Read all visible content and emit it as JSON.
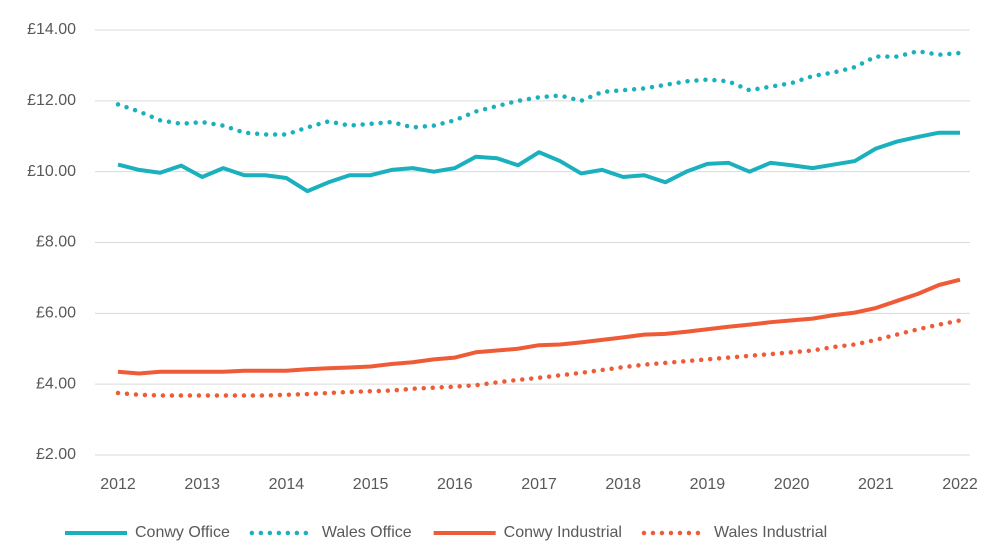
{
  "chart_data": {
    "type": "line",
    "x": [
      2012,
      2012.25,
      2012.5,
      2012.75,
      2013,
      2013.25,
      2013.5,
      2013.75,
      2014,
      2014.25,
      2014.5,
      2014.75,
      2015,
      2015.25,
      2015.5,
      2015.75,
      2016,
      2016.25,
      2016.5,
      2016.75,
      2017,
      2017.25,
      2017.5,
      2017.75,
      2018,
      2018.25,
      2018.5,
      2018.75,
      2019,
      2019.25,
      2019.5,
      2019.75,
      2020,
      2020.25,
      2020.5,
      2020.75,
      2021,
      2021.25,
      2021.5,
      2021.75,
      2022
    ],
    "series": [
      {
        "name": "Conwy Office",
        "color": "#1ab0bd",
        "style": "solid",
        "values": [
          10.2,
          10.05,
          9.97,
          10.17,
          9.85,
          10.1,
          9.9,
          9.9,
          9.82,
          9.45,
          9.7,
          9.9,
          9.9,
          10.05,
          10.1,
          10.0,
          10.1,
          10.42,
          10.38,
          10.18,
          10.55,
          10.3,
          9.95,
          10.05,
          9.85,
          9.9,
          9.7,
          10.0,
          10.22,
          10.25,
          10.0,
          10.25,
          10.18,
          10.1,
          10.2,
          10.3,
          10.65,
          10.85,
          10.98,
          11.1,
          11.1
        ]
      },
      {
        "name": "Wales Office",
        "color": "#1ab0bd",
        "style": "dotted",
        "values": [
          11.9,
          11.7,
          11.45,
          11.35,
          11.4,
          11.3,
          11.1,
          11.05,
          11.05,
          11.25,
          11.42,
          11.3,
          11.35,
          11.4,
          11.25,
          11.3,
          11.45,
          11.7,
          11.85,
          12.0,
          12.1,
          12.15,
          12.0,
          12.25,
          12.3,
          12.35,
          12.45,
          12.55,
          12.6,
          12.55,
          12.3,
          12.4,
          12.5,
          12.7,
          12.8,
          12.95,
          13.25,
          13.25,
          13.4,
          13.3,
          13.35
        ]
      },
      {
        "name": "Conwy Industrial",
        "color": "#ef5b36",
        "style": "solid",
        "values": [
          4.35,
          4.3,
          4.35,
          4.35,
          4.35,
          4.35,
          4.38,
          4.38,
          4.38,
          4.42,
          4.45,
          4.47,
          4.5,
          4.57,
          4.62,
          4.7,
          4.75,
          4.9,
          4.95,
          5.0,
          5.1,
          5.12,
          5.18,
          5.25,
          5.32,
          5.4,
          5.42,
          5.48,
          5.55,
          5.62,
          5.68,
          5.75,
          5.8,
          5.85,
          5.95,
          6.02,
          6.15,
          6.35,
          6.55,
          6.8,
          6.95
        ]
      },
      {
        "name": "Wales Industrial",
        "color": "#ef5b36",
        "style": "dotted",
        "values": [
          3.75,
          3.7,
          3.68,
          3.68,
          3.68,
          3.68,
          3.68,
          3.68,
          3.7,
          3.72,
          3.75,
          3.78,
          3.8,
          3.82,
          3.87,
          3.9,
          3.93,
          3.97,
          4.05,
          4.12,
          4.18,
          4.25,
          4.32,
          4.4,
          4.48,
          4.55,
          4.6,
          4.65,
          4.7,
          4.75,
          4.8,
          4.85,
          4.9,
          4.95,
          5.05,
          5.12,
          5.25,
          5.4,
          5.55,
          5.68,
          5.8
        ]
      }
    ],
    "xlim": [
      2012,
      2022
    ],
    "xticks": [
      2012,
      2013,
      2014,
      2015,
      2016,
      2017,
      2018,
      2019,
      2020,
      2021,
      2022
    ],
    "ylim": [
      2,
      14
    ],
    "yticks": [
      {
        "value": 2,
        "label": "£2.00"
      },
      {
        "value": 4,
        "label": "£4.00"
      },
      {
        "value": 6,
        "label": "£6.00"
      },
      {
        "value": 8,
        "label": "£8.00"
      },
      {
        "value": 10,
        "label": "£10.00"
      },
      {
        "value": 12,
        "label": "£12.00"
      },
      {
        "value": 14,
        "label": "£14.00"
      }
    ],
    "grid": true,
    "legend": "bottom"
  }
}
